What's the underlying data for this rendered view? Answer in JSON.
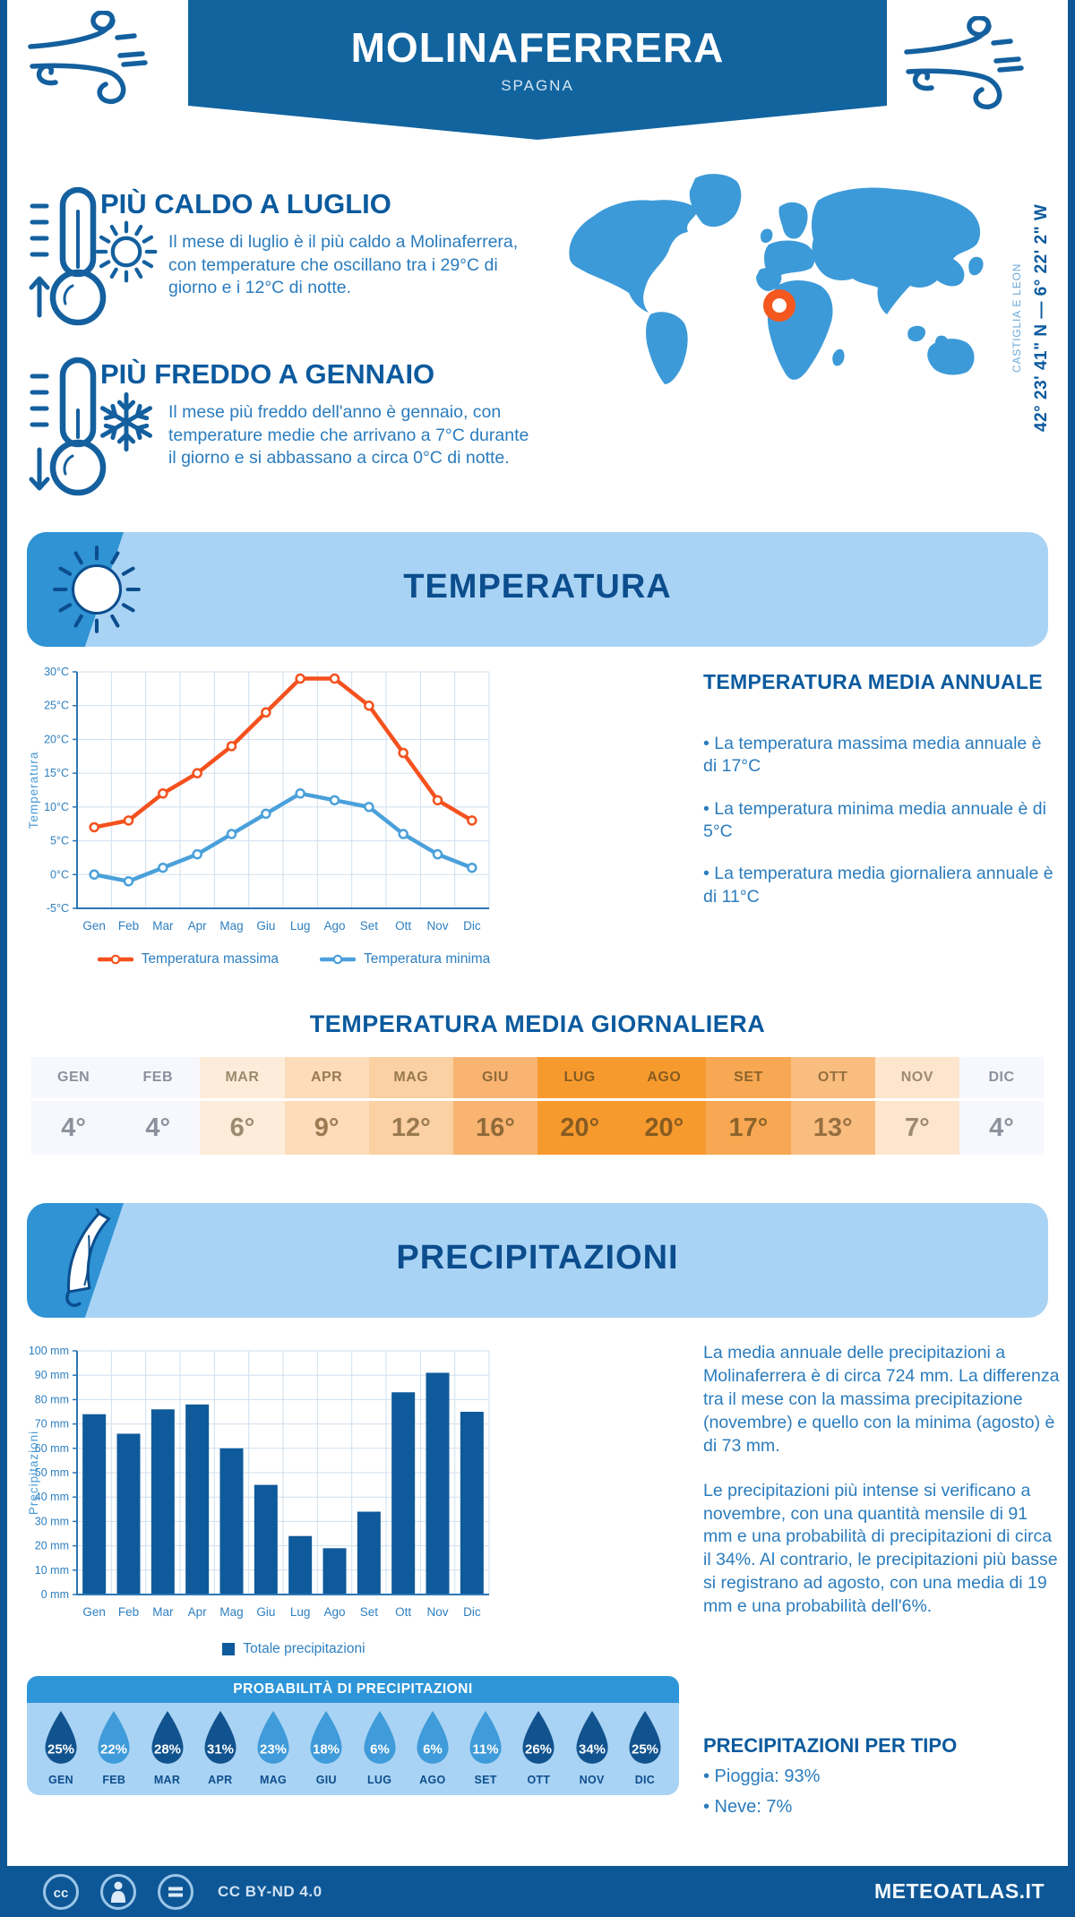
{
  "header": {
    "title": "MOLINAFERRERA",
    "subtitle": "SPAGNA"
  },
  "location": {
    "coordinates": "42° 23' 41\" N — 6° 22' 2\" W",
    "region": "CASTIGLIA E LEON"
  },
  "highlights": {
    "hot": {
      "title": "PIÙ CALDO A LUGLIO",
      "text": "Il mese di luglio è il più caldo a Molinaferrera, con temperature che oscillano tra i 29°C di giorno e i 12°C di notte."
    },
    "cold": {
      "title": "PIÙ FREDDO A GENNAIO",
      "text": "Il mese più freddo dell'anno è gennaio, con temperature medie che arrivano a 7°C durante il giorno e si abbassano a circa 0°C di notte."
    }
  },
  "temperature": {
    "banner_title": "TEMPERATURA",
    "annual_heading": "TEMPERATURA MEDIA ANNUALE",
    "annual_bullets": [
      "• La temperatura massima media annuale è di 17°C",
      "• La temperatura minima media annuale è di 5°C",
      "• La temperatura media giornaliera annuale è di 11°C"
    ],
    "daily_heading": "TEMPERATURA MEDIA GIORNALIERA",
    "daily_table": {
      "months": [
        "GEN",
        "FEB",
        "MAR",
        "APR",
        "MAG",
        "GIU",
        "LUG",
        "AGO",
        "SET",
        "OTT",
        "NOV",
        "DIC"
      ],
      "values": [
        "4°",
        "4°",
        "6°",
        "9°",
        "12°",
        "16°",
        "20°",
        "20°",
        "17°",
        "13°",
        "7°",
        "4°"
      ],
      "cell_colors": [
        "#f7f8fd",
        "#f7f8fd",
        "#fdecd9",
        "#fcdcba",
        "#fbd0a2",
        "#f9b472",
        "#f79a2e",
        "#f79a2e",
        "#f8a853",
        "#fabd80",
        "#fde6cd",
        "#f7f8fd"
      ],
      "text_colors": [
        "#8b919d",
        "#8b919d",
        "#9c8a70",
        "#9a7b52",
        "#98794f",
        "#8f6a39",
        "#875b21",
        "#875b21",
        "#8c642c",
        "#966f3f",
        "#9c8a70",
        "#8b919d"
      ]
    }
  },
  "precipitation": {
    "banner_title": "PRECIPITAZIONI",
    "paragraphs": [
      "La media annuale delle precipitazioni a Molinaferrera è di circa 724 mm. La differenza tra il mese con la massima precipitazione (novembre) e quello con la minima (agosto) è di 73 mm.",
      "Le precipitazioni più intense si verificano a novembre, con una quantità mensile di 91 mm e una probabilità di precipitazioni di circa il 34%. Al contrario, le precipitazioni più basse si registrano ad agosto, con una media di 19 mm e una probabilità dell'6%."
    ],
    "probability": {
      "heading": "PROBABILITÀ DI PRECIPITAZIONI",
      "months": [
        "GEN",
        "FEB",
        "MAR",
        "APR",
        "MAG",
        "GIU",
        "LUG",
        "AGO",
        "SET",
        "OTT",
        "NOV",
        "DIC"
      ],
      "values": [
        "25%",
        "22%",
        "28%",
        "31%",
        "23%",
        "18%",
        "6%",
        "6%",
        "11%",
        "26%",
        "34%",
        "25%"
      ],
      "dark": [
        true,
        false,
        true,
        true,
        false,
        false,
        false,
        false,
        false,
        true,
        true,
        true
      ],
      "colors": {
        "dark": "#11538e",
        "light": "#3f9bd9"
      }
    },
    "by_type": {
      "heading": "PRECIPITAZIONI PER TIPO",
      "items": [
        "• Pioggia: 93%",
        "• Neve: 7%"
      ]
    }
  },
  "footer": {
    "license": "CC BY-ND 4.0",
    "brand": "METEOATLAS.IT"
  },
  "chart_data": [
    {
      "type": "line",
      "title": "Temperatura media mensile",
      "categories": [
        "Gen",
        "Feb",
        "Mar",
        "Apr",
        "Mag",
        "Giu",
        "Lug",
        "Ago",
        "Set",
        "Ott",
        "Nov",
        "Dic"
      ],
      "series": [
        {
          "name": "Temperatura massima",
          "color": "#f4511e",
          "values": [
            7,
            8,
            12,
            15,
            19,
            24,
            29,
            29,
            25,
            18,
            11,
            8
          ]
        },
        {
          "name": "Temperatura minima",
          "color": "#4aa0da",
          "values": [
            0,
            -1,
            1,
            3,
            6,
            9,
            12,
            11,
            10,
            6,
            3,
            1
          ]
        }
      ],
      "xlabel": "",
      "ylabel": "Temperatura",
      "ylim": [
        -5,
        30
      ],
      "ytick_step": 5,
      "ytick_suffix": "°C",
      "grid": true,
      "legend_position": "bottom"
    },
    {
      "type": "bar",
      "title": "Totale precipitazioni mensili",
      "categories": [
        "Gen",
        "Feb",
        "Mar",
        "Apr",
        "Mag",
        "Giu",
        "Lug",
        "Ago",
        "Set",
        "Ott",
        "Nov",
        "Dic"
      ],
      "series_name": "Totale precipitazioni",
      "color": "#0f5a9b",
      "values": [
        74,
        66,
        76,
        78,
        60,
        45,
        24,
        19,
        34,
        83,
        91,
        75
      ],
      "xlabel": "",
      "ylabel": "Precipitazioni",
      "ylim": [
        0,
        100
      ],
      "ytick_step": 10,
      "ytick_suffix": " mm",
      "grid": true,
      "legend_position": "bottom"
    }
  ]
}
